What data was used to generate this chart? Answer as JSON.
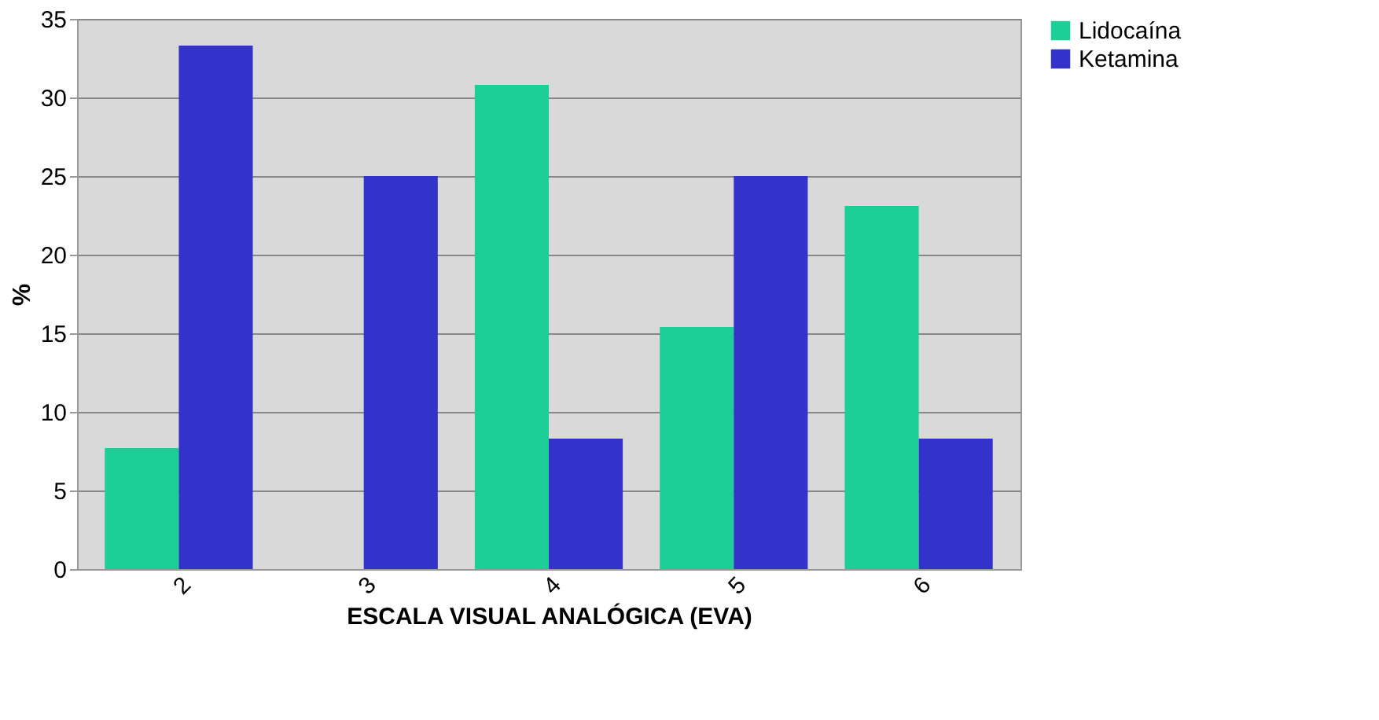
{
  "chart_data": {
    "type": "bar",
    "xlabel": "ESCALA VISUAL ANALÓGICA  (EVA)",
    "ylabel": "%",
    "categories": [
      "2",
      "3",
      "4",
      "5",
      "6"
    ],
    "series": [
      {
        "name": "Lidocaína",
        "color": "#1ccf96",
        "values": [
          7.7,
          0,
          30.8,
          15.4,
          23.1
        ]
      },
      {
        "name": "Ketamina",
        "color": "#3333cc",
        "values": [
          33.3,
          25,
          8.3,
          25,
          8.3
        ]
      }
    ],
    "ylim": [
      0,
      35
    ],
    "yticks": [
      0,
      5,
      10,
      15,
      20,
      25,
      30,
      35
    ],
    "grid": "y",
    "legend": "right"
  }
}
